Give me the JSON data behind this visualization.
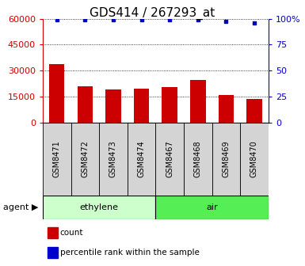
{
  "title": "GDS414 / 267293_at",
  "categories": [
    "GSM8471",
    "GSM8472",
    "GSM8473",
    "GSM8474",
    "GSM8467",
    "GSM8468",
    "GSM8469",
    "GSM8470"
  ],
  "counts": [
    33500,
    21000,
    19000,
    19500,
    20500,
    24500,
    16000,
    13500
  ],
  "percentiles": [
    99,
    99,
    99,
    99,
    99,
    99,
    97,
    96
  ],
  "ylim_left": [
    0,
    60000
  ],
  "ylim_right": [
    0,
    100
  ],
  "yticks_left": [
    0,
    15000,
    30000,
    45000,
    60000
  ],
  "yticks_right": [
    0,
    25,
    50,
    75,
    100
  ],
  "bar_color": "#cc0000",
  "dot_color": "#0000cc",
  "group1_label": "ethylene",
  "group2_label": "air",
  "group1_color": "#ccffcc",
  "group2_color": "#55ee55",
  "agent_label": "agent ▶",
  "legend_count_label": "count",
  "legend_pct_label": "percentile rank within the sample",
  "bar_color_legend": "#cc0000",
  "dot_color_legend": "#0000cc",
  "title_fontsize": 11,
  "bar_width": 0.55,
  "tick_label_fontsize": 7,
  "group_label_fontsize": 8,
  "agent_fontsize": 8,
  "legend_fontsize": 7.5
}
